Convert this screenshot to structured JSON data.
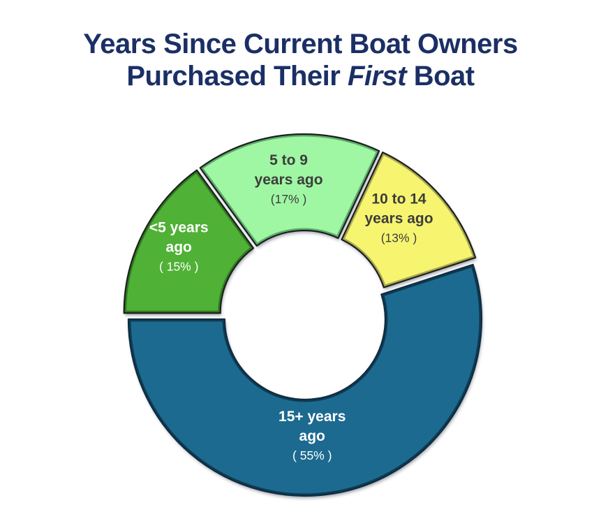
{
  "page": {
    "background_color": "#FFFFFF"
  },
  "title": {
    "line1": "Years Since Current Boat Owners",
    "line2_prefix": "Purchased Their ",
    "line2_italic": "First",
    "line2_suffix": " Boat",
    "color": "#1B2F66"
  },
  "chart_data": {
    "type": "pie",
    "subtype": "exploded-donut",
    "title": "Years Since Current Boat Owners Purchased Their First Boat",
    "categories": [
      "<5 years ago",
      "5 to 9 years ago",
      "10 to 14 years ago",
      "15+ years ago"
    ],
    "values": [
      15,
      17,
      13,
      55
    ],
    "unit": "%",
    "start_angle_deg_clockwise_from_12": 270,
    "direction": "clockwise",
    "donut_hole_ratio": 0.45,
    "legend": "none — labels drawn on slices",
    "slices": [
      {
        "category": "<5 years ago",
        "value_pct": 15,
        "label_lines": [
          "<5 years",
          "ago"
        ],
        "pct_text": "( 15% )",
        "fill": "#4FB136",
        "bevel": "#2F7A20",
        "outline": "#1E1E1E",
        "text_color": "#FFFFFF"
      },
      {
        "category": "5 to 9 years ago",
        "value_pct": 17,
        "label_lines": [
          "5 to 9",
          "years ago"
        ],
        "pct_text": "(17% )",
        "fill": "#9FF7A3",
        "bevel": "#5CAE6B",
        "outline": "#1E1E1E",
        "text_color": "#3D3D3D"
      },
      {
        "category": "10 to 14 years ago",
        "value_pct": 13,
        "label_lines": [
          "10 to 14",
          "years ago"
        ],
        "pct_text": "(13% )",
        "fill": "#F7F56F",
        "bevel": "#A8A94F",
        "outline": "#1E1E1E",
        "text_color": "#3D3D3D"
      },
      {
        "category": "15+ years ago",
        "value_pct": 55,
        "label_lines": [
          "15+ years",
          "ago"
        ],
        "pct_text": "( 55% )",
        "fill": "#1F6A90",
        "bevel": "#0E3B54",
        "outline": "#102C3F",
        "text_color": "#FFFFFF"
      }
    ]
  }
}
